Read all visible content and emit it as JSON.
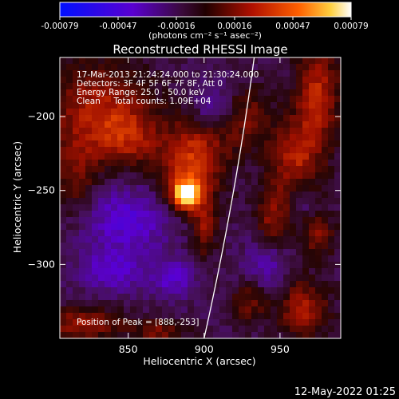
{
  "chart_data": {
    "type": "heatmap",
    "title": "Reconstructed RHESSI Image",
    "xlabel": "Heliocentric X (arcsec)",
    "ylabel": "Heliocentric Y (arcsec)",
    "xlim": [
      805,
      990
    ],
    "ylim": [
      -350,
      -160
    ],
    "xticks": [
      850,
      900,
      950
    ],
    "yticks": [
      -200,
      -250,
      -300
    ],
    "colorbar": {
      "ticks": [
        "-0.00079",
        "-0.00047",
        "-0.00016",
        "0.00016",
        "0.00047",
        "0.00079"
      ],
      "range": [
        -0.00079,
        0.00079
      ],
      "unit_label": "(photons cm⁻² s⁻¹ asec⁻²)"
    },
    "info_lines": [
      "17-Mar-2013 21:24:24.000 to 21:30:24.000",
      "Detectors: 3F 4F 5F 6F 7F 8F, Att 0",
      "Energy Range: 25.0 - 50.0 keV",
      "Clean     Total counts: 1.09E+04"
    ],
    "peak_label": "Position of Peak = [888,-253]",
    "peak": {
      "x": 888,
      "y": -253,
      "value": 0.00079
    },
    "blobs": [
      {
        "x": 888,
        "y": -253,
        "sx": 6,
        "sy": 6,
        "amp": 0.00079
      },
      {
        "x": 890,
        "y": -240,
        "sx": 14,
        "sy": 16,
        "amp": 0.00042
      },
      {
        "x": 900,
        "y": -275,
        "sx": 6,
        "sy": 14,
        "amp": 0.0003
      },
      {
        "x": 830,
        "y": -195,
        "sx": 24,
        "sy": 22,
        "amp": 0.00036
      },
      {
        "x": 850,
        "y": -215,
        "sx": 16,
        "sy": 14,
        "amp": 0.00028
      },
      {
        "x": 815,
        "y": -240,
        "sx": 10,
        "sy": 18,
        "amp": 0.00024
      },
      {
        "x": 900,
        "y": -215,
        "sx": 16,
        "sy": 14,
        "amp": 0.00026
      },
      {
        "x": 930,
        "y": -200,
        "sx": 10,
        "sy": 14,
        "amp": 0.00022
      },
      {
        "x": 975,
        "y": -185,
        "sx": 10,
        "sy": 24,
        "amp": 0.0004
      },
      {
        "x": 960,
        "y": -230,
        "sx": 12,
        "sy": 20,
        "amp": 0.00038
      },
      {
        "x": 945,
        "y": -270,
        "sx": 8,
        "sy": 14,
        "amp": 0.0003
      },
      {
        "x": 975,
        "y": -280,
        "sx": 8,
        "sy": 10,
        "amp": 0.00028
      },
      {
        "x": 965,
        "y": -330,
        "sx": 12,
        "sy": 14,
        "amp": 0.00036
      },
      {
        "x": 930,
        "y": -325,
        "sx": 8,
        "sy": 10,
        "amp": 0.00026
      },
      {
        "x": 820,
        "y": -340,
        "sx": 18,
        "sy": 8,
        "amp": 0.00034
      },
      {
        "x": 870,
        "y": -345,
        "sx": 12,
        "sy": 6,
        "amp": 0.00026
      },
      {
        "x": 905,
        "y": -195,
        "sx": 8,
        "sy": 12,
        "amp": -0.00024
      },
      {
        "x": 850,
        "y": -270,
        "sx": 20,
        "sy": 16,
        "amp": -0.0003
      },
      {
        "x": 840,
        "y": -305,
        "sx": 16,
        "sy": 10,
        "amp": -0.00026
      },
      {
        "x": 880,
        "y": -310,
        "sx": 10,
        "sy": 10,
        "amp": -0.00024
      },
      {
        "x": 940,
        "y": -300,
        "sx": 10,
        "sy": 14,
        "amp": -0.00022
      },
      {
        "x": 965,
        "y": -255,
        "sx": 6,
        "sy": 10,
        "amp": -0.00018
      }
    ],
    "limb": {
      "x_top": 933,
      "y_top": -160,
      "x_bottom": 900,
      "y_bottom": -350
    }
  },
  "footer": {
    "date": "12-May-2022 01:25"
  }
}
